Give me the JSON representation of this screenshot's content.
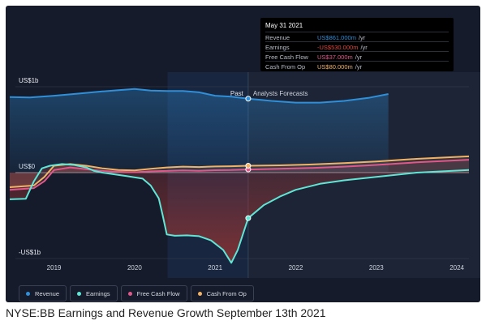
{
  "caption": "NYSE:BB Earnings and Revenue Growth September 13th 2021",
  "colors": {
    "background": "#151b2b",
    "revenue": "#2f8fd8",
    "earnings": "#5ee6d6",
    "free_cash_flow": "#e0588a",
    "cash_from_op": "#f2b266"
  },
  "tooltip": {
    "date": "May 31 2021",
    "rows": [
      {
        "label": "Revenue",
        "value": "US$861.000m",
        "unit": "/yr",
        "color": "#2f8fd8"
      },
      {
        "label": "Earnings",
        "value": "-US$530.000m",
        "unit": "/yr",
        "color": "#e0463c"
      },
      {
        "label": "Free Cash Flow",
        "value": "US$37.000m",
        "unit": "/yr",
        "color": "#e0588a"
      },
      {
        "label": "Cash From Op",
        "value": "US$80.000m",
        "unit": "/yr",
        "color": "#f2b266"
      }
    ]
  },
  "chart_data": {
    "type": "line",
    "y_tick_labels": [
      "US$1b",
      "US$0",
      "-US$1b"
    ],
    "y_tick_values": [
      1000,
      0,
      -1000
    ],
    "ylim": [
      -1100,
      1100
    ],
    "x_tick_labels": [
      "2019",
      "2020",
      "2021",
      "2022",
      "2023",
      "2024"
    ],
    "x_tick_values": [
      2019,
      2020,
      2021,
      2022,
      2023,
      2024
    ],
    "xlim": [
      2018.4,
      2024.15
    ],
    "past_label": "Past",
    "forecast_label": "Analysts Forecasts",
    "divider_x": 2021.41,
    "highlight_start_x": 2020.41,
    "grid": true,
    "legend": "bottom-left",
    "series": [
      {
        "name": "Revenue",
        "key": "revenue",
        "color": "#2f8fd8",
        "fill": true,
        "x": [
          2018.45,
          2018.7,
          2019.0,
          2019.3,
          2019.6,
          2019.8,
          2020.0,
          2020.2,
          2020.4,
          2020.6,
          2020.8,
          2021.0,
          2021.2,
          2021.41,
          2021.7,
          2022.0,
          2022.3,
          2022.6,
          2022.9,
          2023.15
        ],
        "y": [
          880,
          875,
          895,
          920,
          945,
          960,
          975,
          955,
          950,
          950,
          935,
          895,
          885,
          861,
          835,
          815,
          815,
          835,
          870,
          915
        ]
      },
      {
        "name": "Earnings",
        "key": "earnings",
        "color": "#5ee6d6",
        "fill": true,
        "x": [
          2018.45,
          2018.65,
          2018.75,
          2018.85,
          2018.95,
          2019.1,
          2019.25,
          2019.4,
          2019.5,
          2019.6,
          2019.75,
          2019.9,
          2020.1,
          2020.2,
          2020.3,
          2020.35,
          2020.4,
          2020.5,
          2020.65,
          2020.8,
          2020.95,
          2021.1,
          2021.2,
          2021.28,
          2021.41,
          2021.6,
          2021.8,
          2022.0,
          2022.3,
          2022.6,
          2023.0,
          2023.5,
          2024.15
        ],
        "y": [
          -310,
          -305,
          -100,
          50,
          80,
          100,
          90,
          60,
          20,
          0,
          -20,
          -40,
          -70,
          -150,
          -300,
          -500,
          -720,
          -735,
          -730,
          -740,
          -790,
          -900,
          -1050,
          -900,
          -530,
          -380,
          -280,
          -200,
          -130,
          -90,
          -50,
          0,
          30
        ]
      },
      {
        "name": "Free Cash Flow",
        "key": "free_cash_flow",
        "color": "#e0588a",
        "fill": true,
        "x": [
          2018.45,
          2018.75,
          2018.88,
          2019.0,
          2019.2,
          2019.4,
          2019.6,
          2019.8,
          2020.0,
          2020.2,
          2020.4,
          2020.6,
          2020.8,
          2021.0,
          2021.2,
          2021.41,
          2021.8,
          2022.2,
          2022.6,
          2023.0,
          2023.5,
          2024.15
        ],
        "y": [
          -200,
          -180,
          -100,
          30,
          60,
          40,
          20,
          10,
          5,
          15,
          20,
          25,
          22,
          28,
          30,
          37,
          45,
          55,
          70,
          90,
          120,
          150
        ]
      },
      {
        "name": "Cash From Op",
        "key": "cash_from_op",
        "color": "#f2b266",
        "fill": true,
        "x": [
          2018.45,
          2018.75,
          2018.88,
          2019.0,
          2019.2,
          2019.4,
          2019.6,
          2019.8,
          2020.0,
          2020.2,
          2020.4,
          2020.6,
          2020.8,
          2021.0,
          2021.2,
          2021.41,
          2021.8,
          2022.2,
          2022.6,
          2023.0,
          2023.5,
          2024.15
        ],
        "y": [
          -170,
          -150,
          -50,
          80,
          100,
          80,
          50,
          30,
          25,
          45,
          60,
          70,
          65,
          72,
          75,
          80,
          85,
          95,
          110,
          130,
          160,
          190
        ]
      }
    ],
    "markers": [
      {
        "key": "revenue",
        "x": 2021.41,
        "y": 861
      },
      {
        "key": "earnings",
        "x": 2021.41,
        "y": -530
      },
      {
        "key": "free_cash_flow",
        "x": 2021.41,
        "y": 37
      },
      {
        "key": "cash_from_op",
        "x": 2021.41,
        "y": 80
      }
    ]
  },
  "legend_items": [
    {
      "label": "Revenue",
      "color": "#2f8fd8"
    },
    {
      "label": "Earnings",
      "color": "#5ee6d6"
    },
    {
      "label": "Free Cash Flow",
      "color": "#e0588a"
    },
    {
      "label": "Cash From Op",
      "color": "#f2b266"
    }
  ]
}
